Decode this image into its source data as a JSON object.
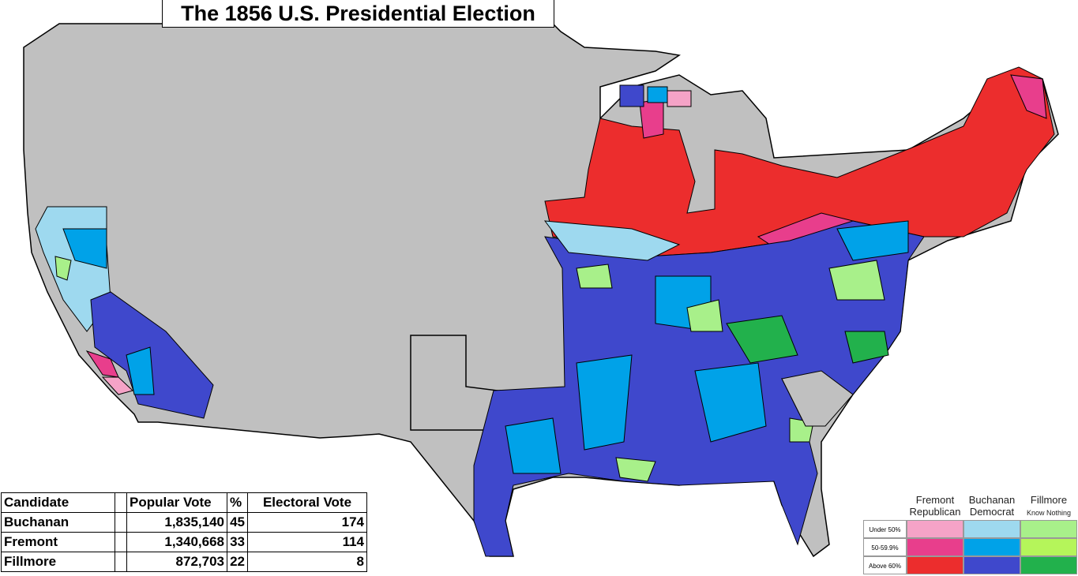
{
  "title": "The 1856 U.S. Presidential Election",
  "table": {
    "header": [
      "Candidate",
      "Popular Vote",
      "%",
      "Electoral Vote"
    ],
    "rows": [
      [
        "Buchanan",
        "1,835,140",
        "45",
        "174"
      ],
      [
        "Fremont",
        "1,340,668",
        "33",
        "114"
      ],
      [
        "Fillmore",
        "872,703",
        "22",
        "8"
      ]
    ]
  },
  "legend": {
    "columns": [
      {
        "name": "Fremont",
        "party": "Republican",
        "colors": [
          "#f5a3c7",
          "#e83e8c",
          "#ec2d2d"
        ]
      },
      {
        "name": "Buchanan",
        "party": "Democrat",
        "colors": [
          "#9ed9ef",
          "#00a2e8",
          "#3f48cc"
        ]
      },
      {
        "name": "Fillmore",
        "party": "Know Nothing",
        "colors": [
          "#a8f08a",
          "#b5f55a",
          "#22b14c"
        ]
      }
    ],
    "rows": [
      "Under 50%",
      "50-59.9%",
      "Above 60%"
    ]
  }
}
